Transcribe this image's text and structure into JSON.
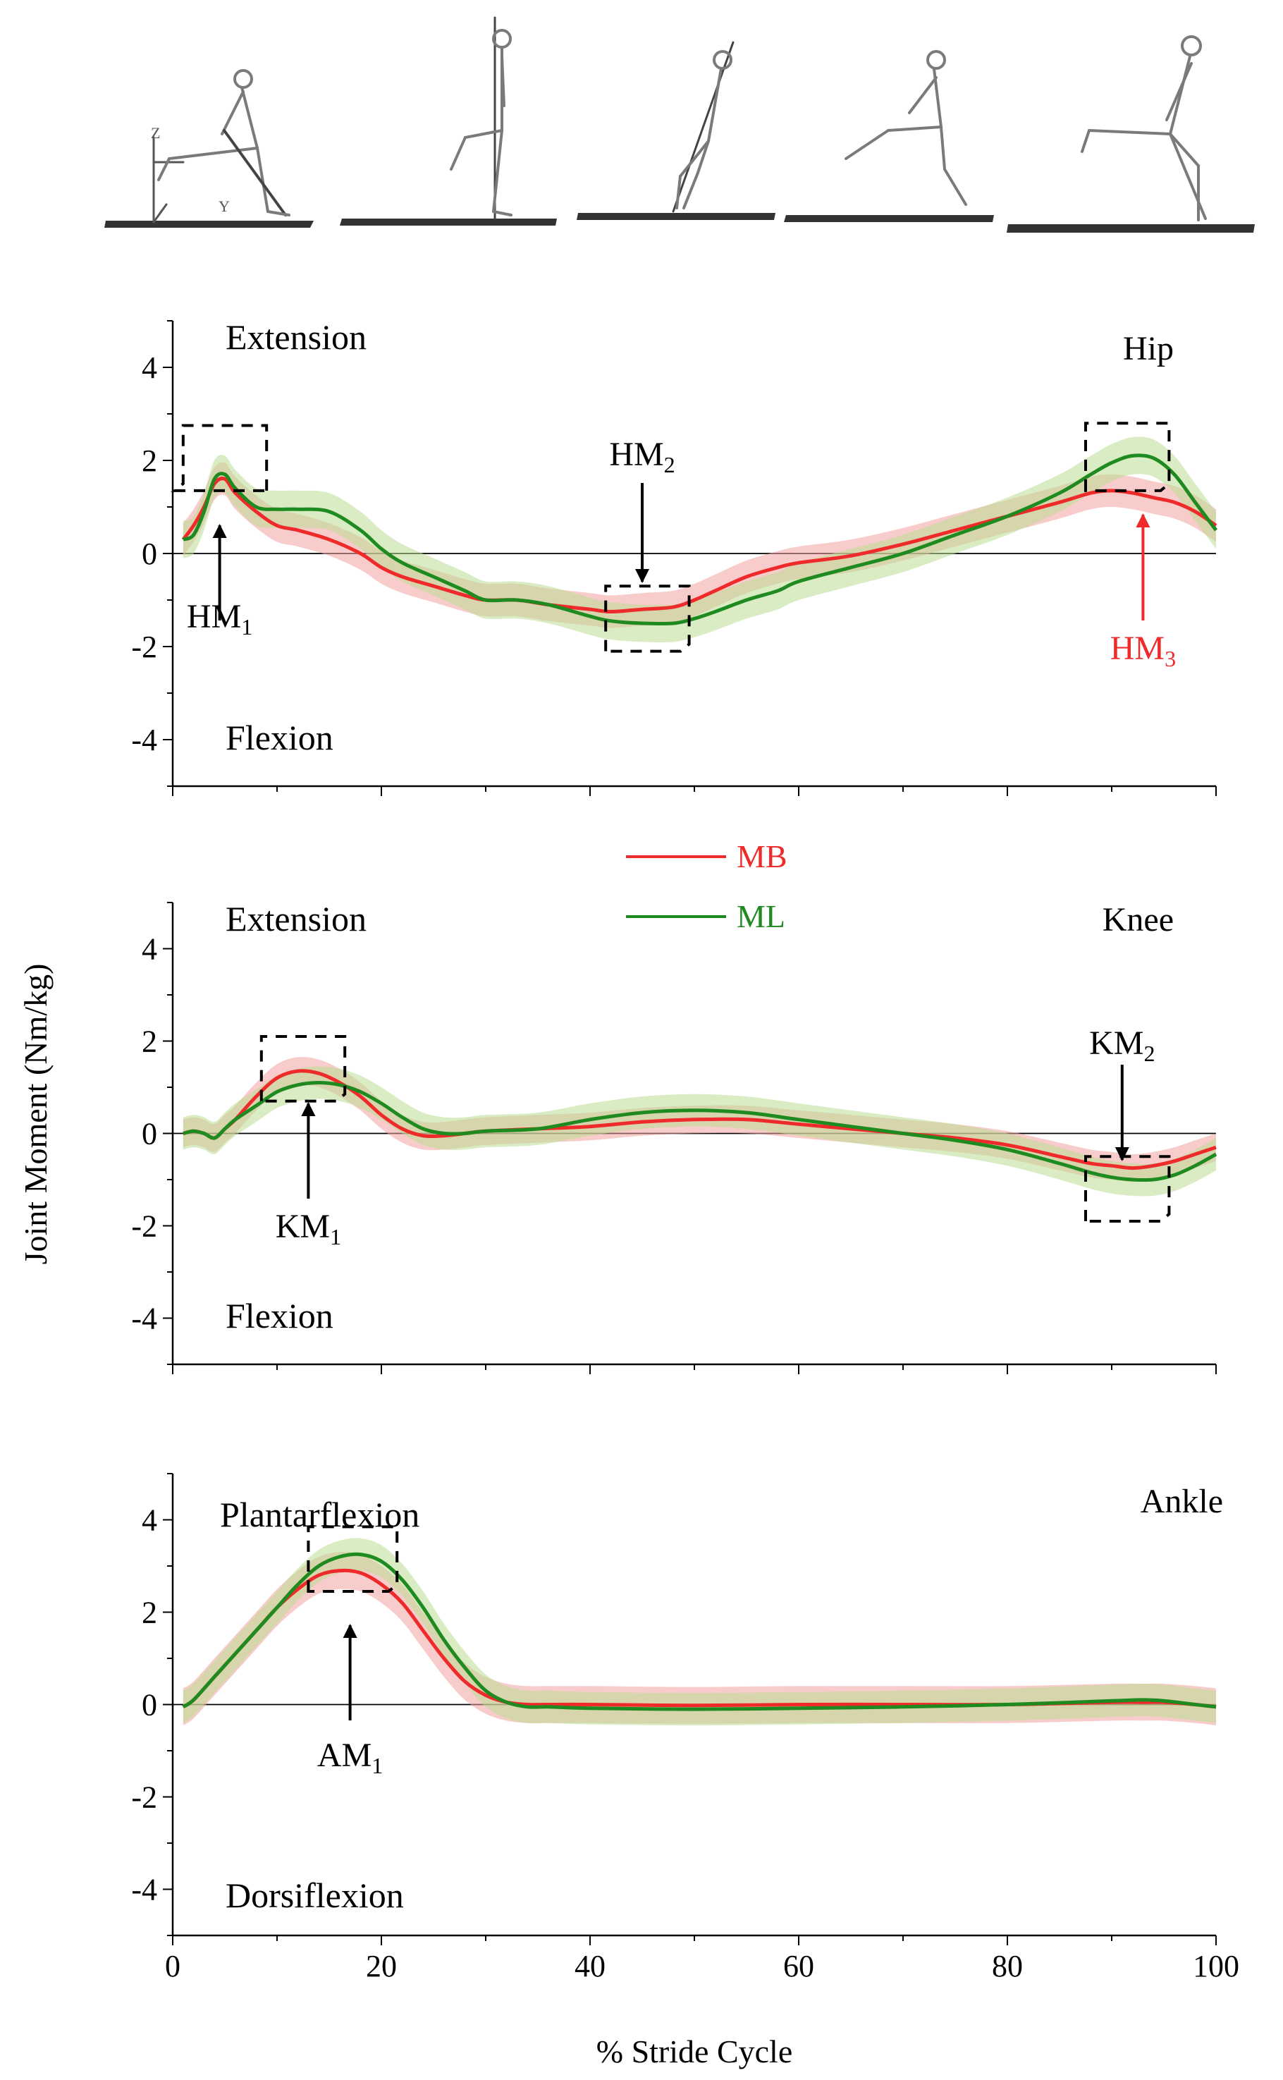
{
  "figure": {
    "ylabel": "Joint Moment (Nm/kg)",
    "xlabel": "% Stride Cycle",
    "skeleton_strip": "five-frame skeleton gait sequence",
    "axis_glyphs": [
      "Z",
      "Y"
    ]
  },
  "legend": {
    "entries": [
      {
        "label": "MB",
        "color": "#ee2a2a"
      },
      {
        "label": "ML",
        "color": "#1f8a1f"
      }
    ]
  },
  "colors": {
    "mb_line": "#ee2a2a",
    "mb_band": "#f4a3a3",
    "ml_line": "#1f8a1f",
    "ml_band": "#b9dc92",
    "axis": "#000000"
  },
  "chart_data": [
    {
      "type": "line",
      "joint": "Hip",
      "title": "Hip",
      "top_label": "Extension",
      "bottom_label": "Flexion",
      "xlim": [
        0,
        100
      ],
      "ylim": [
        -5,
        5
      ],
      "yticks": [
        -4,
        -2,
        0,
        2,
        4
      ],
      "series": [
        {
          "name": "MB",
          "color": "#ee2a2a",
          "x": [
            1,
            2,
            3,
            4,
            5,
            6,
            8,
            10,
            12,
            15,
            18,
            20,
            22,
            25,
            28,
            30,
            33,
            36,
            40,
            42,
            45,
            48,
            50,
            52,
            55,
            58,
            60,
            65,
            70,
            75,
            80,
            85,
            88,
            90,
            92,
            94,
            96,
            98,
            100
          ],
          "values": [
            0.3,
            0.6,
            1.0,
            1.5,
            1.6,
            1.3,
            0.9,
            0.6,
            0.5,
            0.3,
            0.0,
            -0.3,
            -0.5,
            -0.7,
            -0.9,
            -1.0,
            -1.0,
            -1.1,
            -1.2,
            -1.25,
            -1.2,
            -1.15,
            -1.0,
            -0.8,
            -0.5,
            -0.3,
            -0.2,
            -0.05,
            0.2,
            0.5,
            0.8,
            1.1,
            1.3,
            1.35,
            1.3,
            1.2,
            1.1,
            0.9,
            0.6
          ],
          "band": 0.35
        },
        {
          "name": "ML",
          "color": "#1f8a1f",
          "x": [
            1,
            2,
            3,
            4,
            5,
            6,
            8,
            10,
            12,
            15,
            18,
            20,
            22,
            25,
            28,
            30,
            33,
            36,
            40,
            42,
            45,
            48,
            50,
            52,
            55,
            58,
            60,
            65,
            70,
            75,
            80,
            85,
            88,
            90,
            92,
            94,
            96,
            98,
            100
          ],
          "values": [
            0.3,
            0.4,
            0.9,
            1.6,
            1.7,
            1.4,
            1.0,
            0.95,
            0.95,
            0.9,
            0.5,
            0.1,
            -0.2,
            -0.5,
            -0.8,
            -1.0,
            -1.0,
            -1.1,
            -1.35,
            -1.45,
            -1.5,
            -1.5,
            -1.4,
            -1.25,
            -1.0,
            -0.8,
            -0.6,
            -0.3,
            0.0,
            0.4,
            0.8,
            1.3,
            1.7,
            1.95,
            2.1,
            2.05,
            1.7,
            1.1,
            0.5
          ],
          "band": 0.4
        }
      ],
      "annotations": [
        {
          "label": "HM",
          "sub": "1",
          "x": 4.5,
          "color": "#000000"
        },
        {
          "label": "HM",
          "sub": "2",
          "x": 45,
          "color": "#000000"
        },
        {
          "label": "HM",
          "sub": "3",
          "x": 93,
          "color": "#ee2a2a"
        }
      ]
    },
    {
      "type": "line",
      "joint": "Knee",
      "title": "Knee",
      "top_label": "Extension",
      "bottom_label": "Flexion",
      "xlim": [
        0,
        100
      ],
      "ylim": [
        -5,
        5
      ],
      "yticks": [
        -4,
        -2,
        0,
        2,
        4
      ],
      "series": [
        {
          "name": "MB",
          "color": "#ee2a2a",
          "x": [
            1,
            2,
            3,
            4,
            5,
            6,
            8,
            10,
            12,
            14,
            16,
            18,
            20,
            22,
            24,
            26,
            28,
            30,
            35,
            40,
            45,
            50,
            55,
            60,
            65,
            70,
            75,
            80,
            85,
            88,
            90,
            92,
            94,
            96,
            98,
            100
          ],
          "values": [
            0.0,
            0.05,
            0.0,
            -0.1,
            0.1,
            0.3,
            0.8,
            1.2,
            1.35,
            1.3,
            1.1,
            0.8,
            0.4,
            0.1,
            -0.05,
            -0.05,
            0.0,
            0.05,
            0.1,
            0.15,
            0.25,
            0.3,
            0.3,
            0.2,
            0.1,
            0.0,
            -0.1,
            -0.25,
            -0.5,
            -0.65,
            -0.7,
            -0.75,
            -0.7,
            -0.6,
            -0.45,
            -0.3
          ],
          "band": 0.3
        },
        {
          "name": "ML",
          "color": "#1f8a1f",
          "x": [
            1,
            2,
            3,
            4,
            5,
            6,
            8,
            10,
            12,
            14,
            16,
            18,
            20,
            22,
            24,
            26,
            28,
            30,
            35,
            40,
            45,
            50,
            55,
            60,
            65,
            70,
            75,
            80,
            85,
            88,
            90,
            92,
            94,
            96,
            98,
            100
          ],
          "values": [
            0.0,
            0.05,
            0.0,
            -0.1,
            0.1,
            0.3,
            0.6,
            0.9,
            1.05,
            1.1,
            1.05,
            0.9,
            0.65,
            0.35,
            0.1,
            0.0,
            0.0,
            0.05,
            0.1,
            0.3,
            0.45,
            0.5,
            0.45,
            0.3,
            0.15,
            0.0,
            -0.15,
            -0.35,
            -0.65,
            -0.85,
            -0.95,
            -1.0,
            -1.0,
            -0.9,
            -0.7,
            -0.45
          ],
          "band": 0.35
        }
      ],
      "annotations": [
        {
          "label": "KM",
          "sub": "1",
          "x": 13,
          "color": "#000000"
        },
        {
          "label": "KM",
          "sub": "2",
          "x": 91,
          "color": "#000000"
        }
      ]
    },
    {
      "type": "line",
      "joint": "Ankle",
      "title": "Ankle",
      "top_label": "Plantarflexion",
      "bottom_label": "Dorsiflexion",
      "xlim": [
        0,
        100
      ],
      "ylim": [
        -5,
        5
      ],
      "yticks": [
        -4,
        -2,
        0,
        2,
        4
      ],
      "xticks": [
        0,
        20,
        40,
        60,
        80,
        100
      ],
      "series": [
        {
          "name": "MB",
          "color": "#ee2a2a",
          "x": [
            1,
            2,
            4,
            6,
            8,
            10,
            12,
            14,
            16,
            18,
            20,
            22,
            24,
            26,
            28,
            30,
            32,
            34,
            36,
            40,
            50,
            60,
            70,
            80,
            90,
            93,
            95,
            98,
            100
          ],
          "values": [
            -0.05,
            0.1,
            0.6,
            1.1,
            1.6,
            2.1,
            2.5,
            2.8,
            2.9,
            2.85,
            2.6,
            2.2,
            1.6,
            1.0,
            0.5,
            0.2,
            0.05,
            0.0,
            0.0,
            0.0,
            -0.02,
            0.0,
            0.0,
            0.0,
            0.05,
            0.05,
            0.05,
            0.0,
            -0.05
          ],
          "band": 0.4
        },
        {
          "name": "ML",
          "color": "#1f8a1f",
          "x": [
            1,
            2,
            4,
            6,
            8,
            10,
            12,
            14,
            16,
            18,
            20,
            22,
            24,
            26,
            28,
            30,
            32,
            34,
            36,
            40,
            50,
            60,
            70,
            80,
            90,
            93,
            95,
            98,
            100
          ],
          "values": [
            -0.05,
            0.1,
            0.6,
            1.1,
            1.6,
            2.1,
            2.6,
            3.0,
            3.2,
            3.25,
            3.1,
            2.7,
            2.1,
            1.4,
            0.8,
            0.3,
            0.05,
            -0.05,
            -0.05,
            -0.08,
            -0.1,
            -0.08,
            -0.05,
            0.0,
            0.08,
            0.1,
            0.08,
            0.0,
            -0.05
          ],
          "band": 0.35
        }
      ],
      "annotations": [
        {
          "label": "AM",
          "sub": "1",
          "x": 17,
          "color": "#000000"
        }
      ]
    }
  ]
}
